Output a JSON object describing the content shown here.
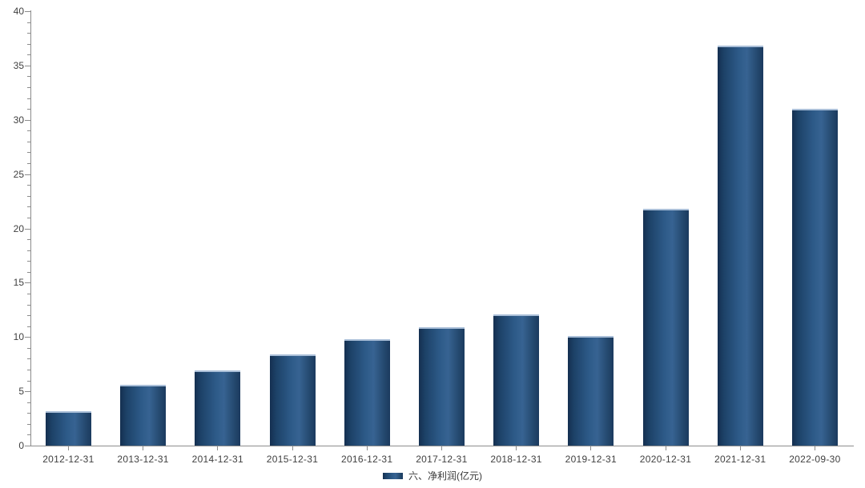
{
  "chart_data": {
    "type": "bar",
    "title": "",
    "xlabel": "",
    "ylabel": "",
    "categories": [
      "2012-12-31",
      "2013-12-31",
      "2014-12-31",
      "2015-12-31",
      "2016-12-31",
      "2017-12-31",
      "2018-12-31",
      "2019-12-31",
      "2020-12-31",
      "2021-12-31",
      "2022-09-30"
    ],
    "series": [
      {
        "name": "六、净利润(亿元)",
        "values": [
          3.2,
          5.6,
          6.9,
          8.4,
          9.8,
          10.9,
          12.1,
          10.1,
          21.8,
          36.8,
          31.0
        ]
      }
    ],
    "ylim": [
      0,
      40
    ],
    "y_major_step": 5,
    "y_minor_step": 1,
    "y_tick_labels": [
      "0",
      "5",
      "10",
      "15",
      "20",
      "25",
      "30",
      "35",
      "40"
    ],
    "grid": false,
    "legend": {
      "position": "bottom-center",
      "items": [
        {
          "label": "六、净利润(亿元)",
          "color": "#1F4E79"
        }
      ]
    },
    "colors": {
      "bar_dark": "#142F50",
      "bar_mid": "#2D5A88",
      "bar_light": "#376392",
      "bar_top_edge": "#AABFD8",
      "axis": "#8C8C8C",
      "label": "#404040",
      "background": "#FFFFFF"
    }
  }
}
